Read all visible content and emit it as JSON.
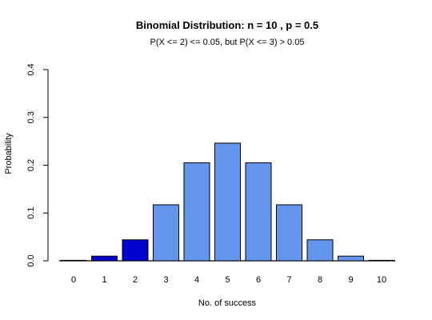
{
  "chart_data": {
    "type": "bar",
    "title": "Binomial Distribution: n = 10 , p = 0.5",
    "subtitle": "P(X <= 2) <= 0.05, but P(X <= 3) > 0.05",
    "xlabel": "No. of success",
    "ylabel": "Probability",
    "categories": [
      "0",
      "1",
      "2",
      "3",
      "4",
      "5",
      "6",
      "7",
      "8",
      "9",
      "10"
    ],
    "values": [
      0.000977,
      0.009766,
      0.043945,
      0.117188,
      0.205078,
      0.246094,
      0.205078,
      0.117188,
      0.043945,
      0.009766,
      0.000977
    ],
    "ylim": [
      0,
      0.4
    ],
    "yticks": [
      "0.0",
      "0.1",
      "0.2",
      "0.3",
      "0.4"
    ],
    "ytick_values": [
      0,
      0.1,
      0.2,
      0.3,
      0.4
    ],
    "grid": false,
    "colors": {
      "highlight": "#0000CD",
      "default": "#6495ED",
      "outline": "#000000"
    },
    "highlighted_categories": [
      "0",
      "1",
      "2"
    ]
  }
}
